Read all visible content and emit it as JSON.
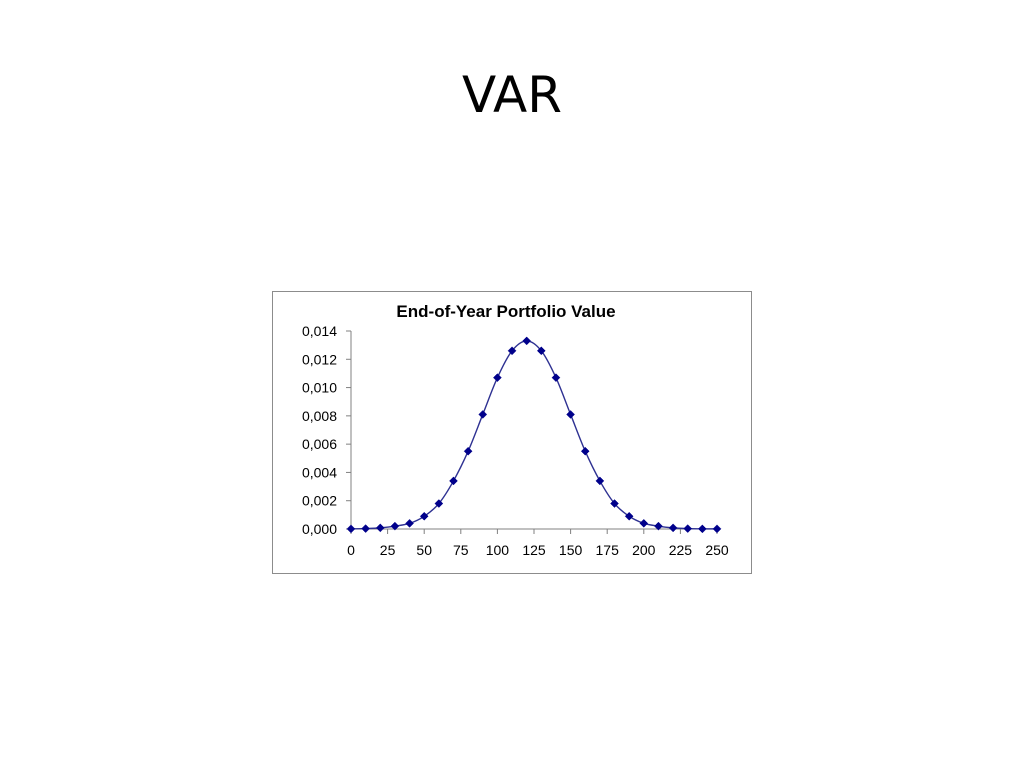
{
  "slide": {
    "title": "VAR"
  },
  "colors": {
    "series": "#00008b",
    "line": "#2e3192",
    "axis": "#808080",
    "frame": "#8c8c8c"
  },
  "chart_data": {
    "type": "line",
    "title": "End-of-Year Portfolio Value",
    "xlabel": "",
    "ylabel": "",
    "xlim": [
      0,
      250
    ],
    "ylim": [
      0,
      0.014
    ],
    "x_ticks": [
      0,
      25,
      50,
      75,
      100,
      125,
      150,
      175,
      200,
      225,
      250
    ],
    "x_tick_labels": [
      "0",
      "25",
      "50",
      "75",
      "100",
      "125",
      "150",
      "175",
      "200",
      "225",
      "250"
    ],
    "y_ticks": [
      0,
      0.002,
      0.004,
      0.006,
      0.008,
      0.01,
      0.012,
      0.014
    ],
    "y_tick_labels": [
      "0,000",
      "0,002",
      "0,004",
      "0,006",
      "0,008",
      "0,010",
      "0,012",
      "0,014"
    ],
    "grid": false,
    "legend": "none",
    "marker": "diamond",
    "series": [
      {
        "x": [
          0,
          10,
          20,
          30,
          40,
          50,
          60,
          70,
          80,
          90,
          100,
          110,
          120,
          130,
          140,
          150,
          160,
          170,
          180,
          190,
          200,
          210,
          220,
          230,
          240,
          250
        ],
        "values": [
          1e-05,
          3e-05,
          8e-05,
          0.0002,
          0.0004,
          0.0009,
          0.0018,
          0.0034,
          0.0055,
          0.0081,
          0.0107,
          0.0126,
          0.0133,
          0.0126,
          0.0107,
          0.0081,
          0.0055,
          0.0034,
          0.0018,
          0.0009,
          0.0004,
          0.0002,
          8e-05,
          3e-05,
          1e-05,
          1e-05
        ]
      }
    ]
  }
}
